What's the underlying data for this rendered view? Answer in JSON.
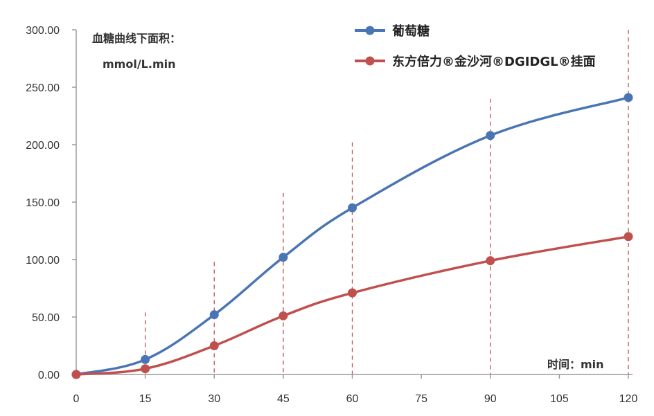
{
  "chart_data": {
    "type": "line",
    "ylabel_line1": "血糖曲线下面积：",
    "ylabel_line2": "mmol/L.min",
    "xlabel": "时间：min",
    "x_ticks": [
      0,
      15,
      30,
      45,
      60,
      75,
      90,
      105,
      120
    ],
    "y_ticks": [
      "0.00",
      "50.00",
      "100.00",
      "150.00",
      "200.00",
      "250.00",
      "300.00"
    ],
    "ylim": [
      0,
      300
    ],
    "xlim": [
      0,
      120
    ],
    "grid": false,
    "legend_position": "top-right",
    "series": [
      {
        "name": "葡萄糖",
        "color": "#4a75b5",
        "x": [
          0,
          15,
          30,
          45,
          60,
          90,
          120
        ],
        "y": [
          0,
          13,
          52,
          102,
          145,
          208,
          241
        ]
      },
      {
        "name": "东方倍力®金沙河®DGIDGL®挂面",
        "color": "#c0504d",
        "x": [
          0,
          15,
          30,
          45,
          60,
          90,
          120
        ],
        "y": [
          0,
          5,
          25,
          51,
          71,
          99,
          120
        ]
      }
    ],
    "reference_lines": {
      "color": "#c0504d",
      "style": "dashed",
      "x": [
        15,
        30,
        45,
        60,
        90,
        120
      ],
      "top": [
        54,
        98,
        158,
        202,
        240,
        300
      ]
    }
  }
}
